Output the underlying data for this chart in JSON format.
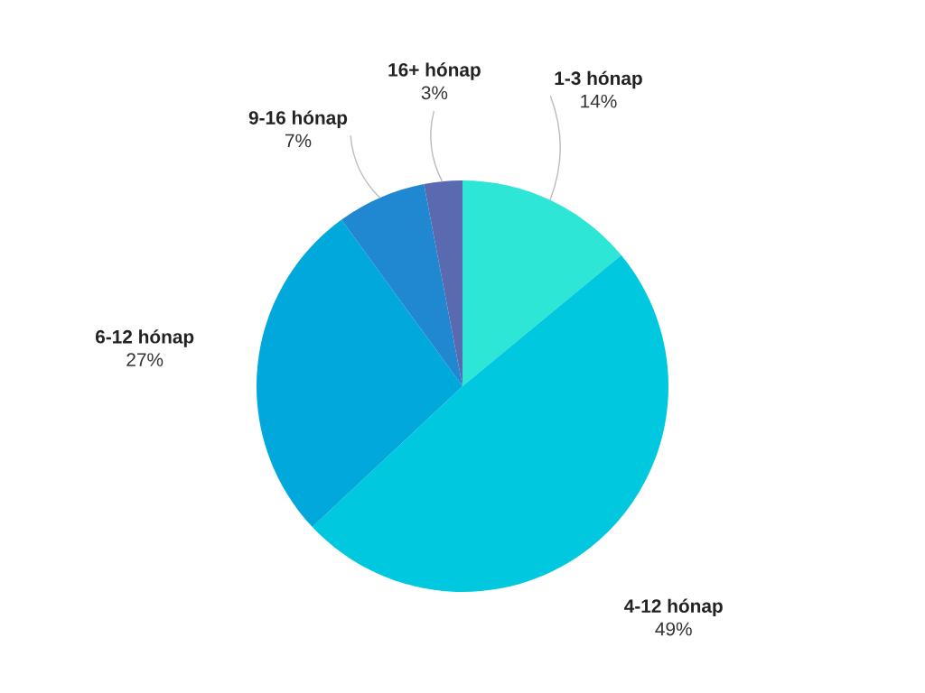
{
  "chart_data": {
    "type": "pie",
    "categories": [
      "1-3 hónap",
      "4-12 hónap",
      "6-12 hónap",
      "9-16 hónap",
      "16+ hónap"
    ],
    "values": [
      14,
      49,
      27,
      7,
      3
    ],
    "value_labels": [
      "14%",
      "49%",
      "27%",
      "7%",
      "3%"
    ],
    "colors": [
      "#2ee6d6",
      "#00c8de",
      "#00a8dc",
      "#1f88d0",
      "#5a6ab0"
    ]
  }
}
